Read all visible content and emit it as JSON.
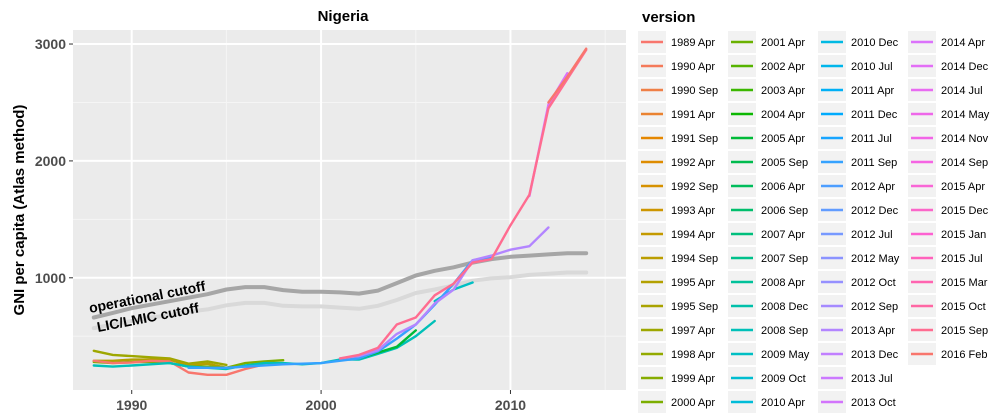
{
  "chart_data": {
    "type": "line",
    "title": "Nigeria",
    "xlabel": "",
    "ylabel": "GNI per capita (Atlas method)",
    "xlim": [
      1986.9,
      2016.1
    ],
    "ylim": [
      40,
      3120
    ],
    "x_ticks": [
      1990,
      2000,
      2010
    ],
    "y_ticks": [
      1000,
      2000,
      3000
    ],
    "grid": true,
    "legend_position": "right",
    "legend_title": "version",
    "annotations": [
      "operational cutoff",
      "LIC/LMIC cutoff"
    ],
    "thresholds": [
      {
        "name": "operational cutoff",
        "color": "#a6a6a6",
        "x": [
          1988,
          1989,
          1990,
          1991,
          1992,
          1993,
          1994,
          1995,
          1996,
          1997,
          1998,
          1999,
          2000,
          2001,
          2002,
          2003,
          2004,
          2005,
          2006,
          2007,
          2008,
          2009,
          2010,
          2011,
          2012,
          2013,
          2014
        ],
        "y": [
          660,
          700,
          740,
          770,
          800,
          830,
          860,
          900,
          920,
          920,
          895,
          880,
          880,
          875,
          865,
          890,
          955,
          1020,
          1060,
          1090,
          1130,
          1160,
          1180,
          1190,
          1200,
          1210,
          1210
        ]
      },
      {
        "name": "LIC/LMIC cutoff",
        "color": "#d9d9d9",
        "x": [
          1988,
          1989,
          1990,
          1991,
          1992,
          1993,
          1994,
          1995,
          1996,
          1997,
          1998,
          1999,
          2000,
          2001,
          2002,
          2003,
          2004,
          2005,
          2006,
          2007,
          2008,
          2009,
          2010,
          2011,
          2012,
          2013,
          2014
        ],
        "y": [
          570,
          600,
          630,
          660,
          680,
          710,
          730,
          765,
          785,
          785,
          760,
          755,
          755,
          745,
          735,
          760,
          810,
          870,
          900,
          935,
          975,
          995,
          1005,
          1025,
          1035,
          1045,
          1045
        ]
      }
    ],
    "legend": [
      {
        "label": "1989 Apr",
        "color": "#F8766D"
      },
      {
        "label": "1990 Apr",
        "color": "#F47A5A"
      },
      {
        "label": "1990 Sep",
        "color": "#EF7F46"
      },
      {
        "label": "1991 Apr",
        "color": "#EA8331"
      },
      {
        "label": "1991 Sep",
        "color": "#E58700"
      },
      {
        "label": "1992 Apr",
        "color": "#DE8C00"
      },
      {
        "label": "1992 Sep",
        "color": "#D69100"
      },
      {
        "label": "1993 Apr",
        "color": "#CD9600"
      },
      {
        "label": "1994 Apr",
        "color": "#C49A00"
      },
      {
        "label": "1994 Sep",
        "color": "#BB9D00"
      },
      {
        "label": "1995 Apr",
        "color": "#B3A000"
      },
      {
        "label": "1995 Sep",
        "color": "#A9A300"
      },
      {
        "label": "1997 Apr",
        "color": "#9EA700"
      },
      {
        "label": "1998 Apr",
        "color": "#93AA00"
      },
      {
        "label": "1999 Apr",
        "color": "#86AC00"
      },
      {
        "label": "2000 Apr",
        "color": "#7CAE00"
      },
      {
        "label": "2001 Apr",
        "color": "#6AB100"
      },
      {
        "label": "2002 Apr",
        "color": "#56B400"
      },
      {
        "label": "2003 Apr",
        "color": "#3BB700"
      },
      {
        "label": "2004 Apr",
        "color": "#0CB702"
      },
      {
        "label": "2005 Apr",
        "color": "#00BA38"
      },
      {
        "label": "2005 Sep",
        "color": "#00BB4E"
      },
      {
        "label": "2006 Apr",
        "color": "#00BD5C"
      },
      {
        "label": "2006 Sep",
        "color": "#00BE6C"
      },
      {
        "label": "2007 Apr",
        "color": "#00BF7D"
      },
      {
        "label": "2007 Sep",
        "color": "#00C08B"
      },
      {
        "label": "2008 Apr",
        "color": "#00C19A"
      },
      {
        "label": "2008 Dec",
        "color": "#00C0AA"
      },
      {
        "label": "2008 Sep",
        "color": "#00C0B8"
      },
      {
        "label": "2009 May",
        "color": "#00BFC4"
      },
      {
        "label": "2009 Oct",
        "color": "#00BDD0"
      },
      {
        "label": "2010 Apr",
        "color": "#00BCD8"
      },
      {
        "label": "2010 Dec",
        "color": "#00B9E3"
      },
      {
        "label": "2010 Jul",
        "color": "#00B6EB"
      },
      {
        "label": "2011 Apr",
        "color": "#00B0F6"
      },
      {
        "label": "2011 Dec",
        "color": "#00ABFD"
      },
      {
        "label": "2011 Jul",
        "color": "#18A5FF"
      },
      {
        "label": "2011 Sep",
        "color": "#35A2FF"
      },
      {
        "label": "2012 Apr",
        "color": "#4D9EFF"
      },
      {
        "label": "2012 Dec",
        "color": "#619CFF"
      },
      {
        "label": "2012 Jul",
        "color": "#7799FF"
      },
      {
        "label": "2012 May",
        "color": "#8B93FF"
      },
      {
        "label": "2012 Oct",
        "color": "#9590FF"
      },
      {
        "label": "2012 Sep",
        "color": "#A58AFF"
      },
      {
        "label": "2013 Apr",
        "color": "#B385FF"
      },
      {
        "label": "2013 Dec",
        "color": "#C17FFF"
      },
      {
        "label": "2013 Jul",
        "color": "#CC79FF"
      },
      {
        "label": "2013 Oct",
        "color": "#D274FC"
      },
      {
        "label": "2014 Apr",
        "color": "#DB72FB"
      },
      {
        "label": "2014 Dec",
        "color": "#E36EF6"
      },
      {
        "label": "2014 Jul",
        "color": "#E86BF1"
      },
      {
        "label": "2014 May",
        "color": "#EE67E9"
      },
      {
        "label": "2014 Nov",
        "color": "#F265E7"
      },
      {
        "label": "2014 Sep",
        "color": "#F564E3"
      },
      {
        "label": "2015 Apr",
        "color": "#F966D6"
      },
      {
        "label": "2015 Dec",
        "color": "#FB66C9"
      },
      {
        "label": "2015 Jan",
        "color": "#FD61D1"
      },
      {
        "label": "2015 Jul",
        "color": "#FF62BC"
      },
      {
        "label": "2015 Mar",
        "color": "#FF64B0"
      },
      {
        "label": "2015 Oct",
        "color": "#FF67A4"
      },
      {
        "label": "2015 Sep",
        "color": "#FF6C90"
      },
      {
        "label": "2016 Feb",
        "color": "#F8766D"
      }
    ],
    "series": [
      {
        "color": "#9EA700",
        "x": [
          1988,
          1989,
          1990,
          1991,
          1992,
          1993,
          1994,
          1995
        ],
        "y": [
          375,
          340,
          330,
          320,
          310,
          265,
          285,
          255
        ]
      },
      {
        "color": "#B3A000",
        "x": [
          1988,
          1989,
          1990,
          1991,
          1992,
          1993,
          1994,
          1995
        ],
        "y": [
          290,
          290,
          300,
          300,
          300,
          250,
          265,
          230
        ]
      },
      {
        "color": "#7CAE00",
        "x": [
          1988,
          1989,
          1990,
          1991,
          1992,
          1993,
          1994,
          1995,
          1996,
          1997,
          1998
        ],
        "y": [
          280,
          270,
          280,
          280,
          270,
          240,
          240,
          230,
          270,
          285,
          295
        ]
      },
      {
        "color": "#F8766D",
        "x": [
          1988,
          1989,
          1990,
          1991,
          1992,
          1993,
          1994,
          1995,
          1996,
          1997
        ],
        "y": [
          290,
          270,
          275,
          290,
          285,
          190,
          170,
          170,
          220,
          260
        ]
      },
      {
        "color": "#00C0B8",
        "x": [
          1988,
          1989,
          1990,
          1991,
          1992,
          1993,
          1994,
          1995,
          1996,
          1997,
          1998,
          1999,
          2000,
          2001,
          2002,
          2003,
          2004,
          2005,
          2006
        ],
        "y": [
          250,
          240,
          250,
          260,
          270,
          240,
          230,
          220,
          250,
          270,
          270,
          260,
          270,
          300,
          300,
          350,
          400,
          500,
          630
        ]
      },
      {
        "color": "#00BA38",
        "x": [
          2001,
          2002,
          2003,
          2004,
          2005
        ],
        "y": [
          300,
          310,
          360,
          410,
          550
        ]
      },
      {
        "color": "#00BFC4",
        "x": [
          2006,
          2007,
          2008
        ],
        "y": [
          800,
          900,
          960
        ]
      },
      {
        "color": "#35A2FF",
        "x": [
          1993,
          1995,
          1998,
          2000,
          2002,
          2003,
          2004,
          2005,
          2006,
          2007,
          2008,
          2009
        ],
        "y": [
          230,
          230,
          260,
          270,
          310,
          370,
          480,
          600,
          770,
          950,
          1150,
          1180
        ]
      },
      {
        "color": "#B385FF",
        "x": [
          2001,
          2002,
          2003,
          2004,
          2005,
          2006,
          2007,
          2008,
          2009,
          2010,
          2011,
          2012
        ],
        "y": [
          310,
          330,
          380,
          520,
          600,
          780,
          900,
          1150,
          1190,
          1240,
          1270,
          1430
        ]
      },
      {
        "color": "#DB72FB",
        "x": [
          2011,
          2012,
          2013
        ],
        "y": [
          1700,
          2480,
          2750
        ]
      },
      {
        "color": "#FF6C90",
        "x": [
          2001,
          2002,
          2003,
          2004,
          2005,
          2006,
          2007,
          2008,
          2009,
          2010,
          2011,
          2012,
          2013,
          2014
        ],
        "y": [
          310,
          340,
          400,
          600,
          660,
          850,
          950,
          1130,
          1160,
          1450,
          1710,
          2450,
          2700,
          2950
        ]
      },
      {
        "color": "#F8766D",
        "x": [
          2012,
          2013,
          2014
        ],
        "y": [
          2500,
          2720,
          2960
        ]
      }
    ]
  }
}
